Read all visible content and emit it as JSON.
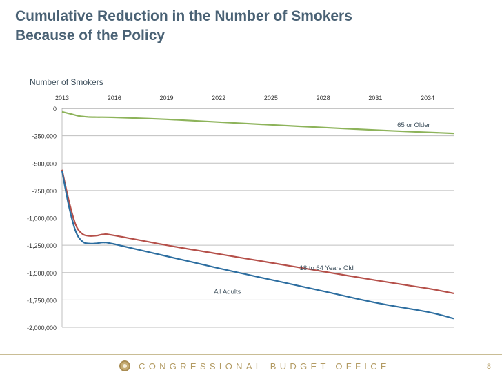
{
  "title_line1": "Cumulative Reduction in the Number of Smokers",
  "title_line2": "Because of the Policy",
  "footer": {
    "org": "CONGRESSIONAL BUDGET OFFICE",
    "page_number": "8",
    "logo_icon": "cbo-seal-icon"
  },
  "chart_data": {
    "type": "line",
    "ylabel": "Number of Smokers",
    "xlim": [
      2013,
      2035.5
    ],
    "ylim": [
      -2000000,
      0
    ],
    "x_ticks": [
      2013,
      2016,
      2019,
      2022,
      2025,
      2028,
      2031,
      2034
    ],
    "x_tick_labels": [
      "2013",
      "2016",
      "2019",
      "2022",
      "2025",
      "2028",
      "2031",
      "2034"
    ],
    "y_ticks": [
      0,
      -250000,
      -500000,
      -750000,
      -1000000,
      -1250000,
      -1500000,
      -1750000,
      -2000000
    ],
    "y_tick_labels": [
      "0",
      "-250,000",
      "-500,000",
      "-750,000",
      "-1,000,000",
      "-1,250,000",
      "-1,500,000",
      "-1,750,000",
      "-2,000,000"
    ],
    "grid": true,
    "x_axis_position": "top",
    "series": [
      {
        "name": "65 or Older",
        "color": "#8db35a",
        "x": [
          2013,
          2013.5,
          2014,
          2014.5,
          2015,
          2016,
          2019,
          2022,
          2025,
          2028,
          2031,
          2034,
          2035.5
        ],
        "y": [
          -30000,
          -50000,
          -70000,
          -78000,
          -80000,
          -82000,
          -100000,
          -125000,
          -150000,
          -175000,
          -198000,
          -218000,
          -228000
        ]
      },
      {
        "name": "18 to 64 Years Old",
        "color": "#b5504a",
        "x": [
          2013,
          2013.4,
          2013.8,
          2014.2,
          2014.6,
          2015,
          2015.4,
          2016,
          2019,
          2022,
          2025,
          2028,
          2031,
          2034,
          2035.5
        ],
        "y": [
          -560000,
          -850000,
          -1070000,
          -1150000,
          -1165000,
          -1162000,
          -1150000,
          -1160000,
          -1250000,
          -1330000,
          -1410000,
          -1490000,
          -1570000,
          -1645000,
          -1690000
        ]
      },
      {
        "name": "All Adults",
        "color": "#2d6ea0",
        "x": [
          2013,
          2013.4,
          2013.8,
          2014.2,
          2014.6,
          2015,
          2015.4,
          2016,
          2019,
          2022,
          2025,
          2028,
          2031,
          2034,
          2035.5
        ],
        "y": [
          -570000,
          -900000,
          -1130000,
          -1220000,
          -1235000,
          -1232000,
          -1225000,
          -1240000,
          -1350000,
          -1460000,
          -1565000,
          -1670000,
          -1775000,
          -1860000,
          -1920000
        ]
      }
    ],
    "annotations": [
      {
        "text": "65 or Older",
        "x": 2033.2,
        "y": -145000
      },
      {
        "text": "18 to 64 Years Old",
        "x": 2028.2,
        "y": -1450000
      },
      {
        "text": "All Adults",
        "x": 2022.5,
        "y": -1670000
      }
    ]
  }
}
